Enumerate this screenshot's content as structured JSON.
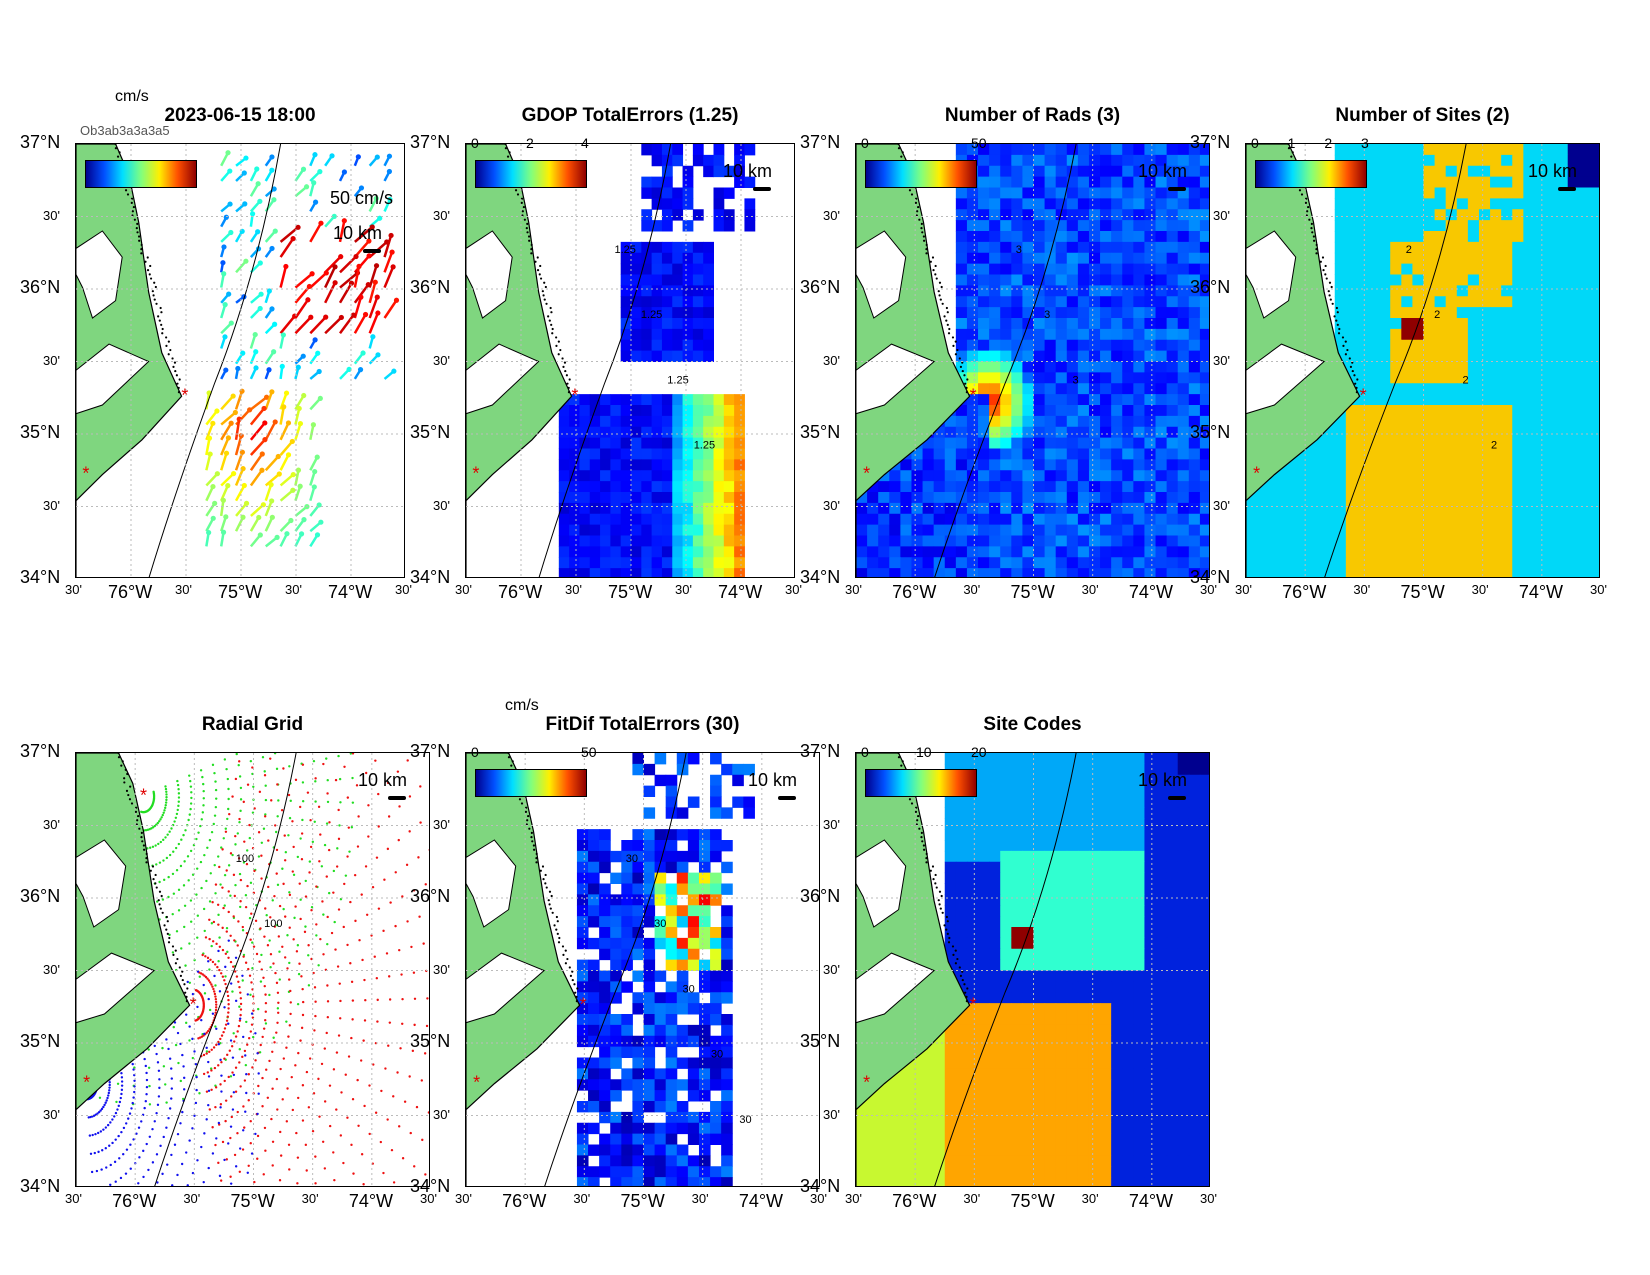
{
  "figure": {
    "panels": [
      {
        "id": "p1",
        "title": "2023-06-15 18:00",
        "unit": "cm/s",
        "cbar_ticks": [],
        "scale_text": "10 km",
        "extra_text": "50 cm/s",
        "overlap_text": "Ob3ab3a3a3a5",
        "kind": "vectors"
      },
      {
        "id": "p2",
        "title": "GDOP TotalErrors (1.25)",
        "unit": "",
        "cbar_ticks": [
          "0",
          "2",
          "4"
        ],
        "scale_text": "10 km",
        "contour_labels": [
          "1.25",
          "1.25",
          "1.25",
          "1.25"
        ],
        "kind": "gdop"
      },
      {
        "id": "p3",
        "title": "Number of Rads (3)",
        "unit": "",
        "cbar_ticks": [
          "0",
          "50"
        ],
        "scale_text": "10 km",
        "contour_labels": [
          "3",
          "3",
          "3"
        ],
        "kind": "rads"
      },
      {
        "id": "p4",
        "title": "Number of Sites (2)",
        "unit": "",
        "cbar_ticks": [
          "0",
          "1",
          "2",
          "3"
        ],
        "scale_text": "10 km",
        "contour_labels": [
          "2",
          "2",
          "2",
          "2"
        ],
        "kind": "sites"
      },
      {
        "id": "p5",
        "title": "Radial Grid",
        "unit": "",
        "cbar_ticks": [],
        "scale_text": "10 km",
        "contour_labels": [
          "100",
          "100"
        ],
        "kind": "radial"
      },
      {
        "id": "p6",
        "title": "FitDif TotalErrors (30)",
        "unit": "cm/s",
        "cbar_ticks": [
          "0",
          "50"
        ],
        "scale_text": "10 km",
        "contour_labels": [
          "30",
          "30",
          "30",
          "30",
          "30"
        ],
        "kind": "fitdif"
      },
      {
        "id": "p7",
        "title": "Site Codes",
        "unit": "",
        "cbar_ticks": [
          "0",
          "10",
          "20"
        ],
        "scale_text": "10 km",
        "contour_labels": [],
        "kind": "codes"
      }
    ],
    "lat_labels": [
      "37°N",
      "30'",
      "36°N",
      "30'",
      "35°N",
      "30'",
      "34°N"
    ],
    "lon_labels": [
      "30'",
      "76°W",
      "30'",
      "75°W",
      "30'",
      "74°W",
      "30'"
    ],
    "colors": {
      "land": "#7fd67f",
      "site_marker": "#e00000",
      "radial_green": "#22dd22",
      "radial_red": "#ee1111",
      "radial_blue": "#1111ee",
      "cyan": "#00d8f8",
      "gold": "#f8c800",
      "darkred": "#8f0000",
      "navy": "#00008f",
      "blue": "#0022dd",
      "teal": "#30ffd0",
      "lime": "#c8f830",
      "orange": "#ffa500",
      "sky": "#00a8f8"
    }
  }
}
